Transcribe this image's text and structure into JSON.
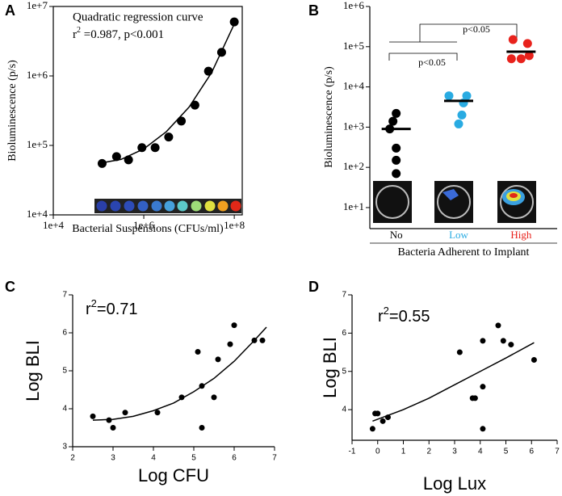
{
  "chart_data": [
    {
      "type": "scatter",
      "panel": "A",
      "xlog": true,
      "ylog": true,
      "annotation": "Quadratic regression curve",
      "stat": [
        "r",
        "2",
        " =0.987, p<0.001"
      ],
      "xlabel": "Bacterial Suspensions (CFUs/ml)",
      "ylabel": "Bioluminescence (p/s)",
      "xlim": [
        10000,
        150000000
      ],
      "ylim": [
        10000,
        10000000
      ],
      "xticks": [
        {
          "value": 10000,
          "label": "1e+4"
        },
        {
          "value": 1000000,
          "label": "1e+6"
        },
        {
          "value": 100000000,
          "label": "1e+8"
        }
      ],
      "yticks": [
        {
          "value": 10000,
          "label": "1e+4"
        },
        {
          "value": 100000,
          "label": "1e+5"
        },
        {
          "value": 1000000,
          "label": "1e+6"
        },
        {
          "value": 10000000,
          "label": "1e+7"
        }
      ],
      "x": [
        120000,
        250000,
        460000,
        910000,
        1780000,
        3550000,
        6760000,
        13500000,
        26900000,
        52500000,
        100000000
      ],
      "values": [
        55000,
        69000,
        62000,
        93000,
        93000,
        132000,
        224000,
        380000,
        1170000,
        2190000,
        6000000
      ],
      "color": "#000000",
      "fit": {
        "x": [
          100000,
          316228,
          1000000,
          3162278,
          10000000,
          31622777,
          100000000
        ],
        "values": [
          55000,
          63000,
          89000,
          158000,
          355000,
          1120000,
          5600000
        ]
      }
    },
    {
      "type": "dot",
      "panel": "B",
      "ylog": true,
      "ylabel": "Bioluminescence (p/s)",
      "xlabel": "Bacteria Adherent to Implant",
      "ylim": [
        3,
        1000000
      ],
      "yticks": [
        {
          "value": 10,
          "label": "1e+1"
        },
        {
          "value": 100,
          "label": "1e+2"
        },
        {
          "value": 1000,
          "label": "1e+3"
        },
        {
          "value": 10000,
          "label": "1e+4"
        },
        {
          "value": 100000,
          "label": "1e+5"
        },
        {
          "value": 1000000,
          "label": "1e+6"
        }
      ],
      "categories": [
        "No",
        "Low",
        "High"
      ],
      "colors": [
        "#000000",
        "#29abe2",
        "#e8221c"
      ],
      "points": [
        [
          2200,
          1400,
          900,
          300,
          150,
          70
        ],
        [
          6000,
          6000,
          4000,
          2000,
          1200
        ],
        [
          150000,
          120000,
          60000,
          50000,
          50000
        ]
      ],
      "means": [
        900,
        4500,
        75000
      ],
      "annotations": [
        "p<0.05",
        "p<0.05"
      ]
    },
    {
      "type": "scatter",
      "panel": "C",
      "stat": [
        "r",
        "2",
        "=0.71"
      ],
      "xlabel": "Log CFU",
      "ylabel": "Log BLI",
      "xlim": [
        2,
        7
      ],
      "ylim": [
        3,
        7
      ],
      "xticks": [
        2,
        3,
        4,
        5,
        6,
        7
      ],
      "yticks": [
        3,
        4,
        5,
        6,
        7
      ],
      "x": [
        2.5,
        2.9,
        3.0,
        3.3,
        4.1,
        4.7,
        5.1,
        5.2,
        5.2,
        5.5,
        5.6,
        5.9,
        6.0,
        6.5,
        6.7
      ],
      "values": [
        3.8,
        3.7,
        3.5,
        3.9,
        3.9,
        4.3,
        5.5,
        3.5,
        4.6,
        4.3,
        5.3,
        5.7,
        6.2,
        5.8,
        5.8
      ],
      "color": "#000000",
      "fit": {
        "x": [
          2.5,
          3,
          3.5,
          4,
          4.5,
          5,
          5.5,
          6,
          6.5,
          6.8
        ],
        "values": [
          3.7,
          3.72,
          3.8,
          3.95,
          4.15,
          4.45,
          4.8,
          5.25,
          5.8,
          6.15
        ]
      }
    },
    {
      "type": "scatter",
      "panel": "D",
      "stat": [
        "r",
        "2",
        "=0.55"
      ],
      "xlabel": "Log Lux",
      "ylabel": "Log BLI",
      "xlim": [
        -1,
        7
      ],
      "ylim": [
        3.2,
        7
      ],
      "xticks": [
        -1,
        0,
        1,
        2,
        3,
        4,
        5,
        6,
        7
      ],
      "yticks": [
        4,
        5,
        6,
        7
      ],
      "x": [
        -0.2,
        -0.1,
        0,
        0.2,
        0.4,
        3.2,
        3.7,
        3.8,
        4.1,
        4.1,
        4.1,
        4.7,
        4.9,
        5.2,
        6.1
      ],
      "values": [
        3.5,
        3.9,
        3.9,
        3.7,
        3.8,
        5.5,
        4.3,
        4.3,
        3.5,
        4.6,
        5.8,
        6.2,
        5.8,
        5.7,
        5.3
      ],
      "color": "#000000",
      "fit": {
        "x": [
          -0.2,
          1,
          2,
          3,
          4,
          5,
          6.1
        ],
        "values": [
          3.7,
          4.0,
          4.3,
          4.65,
          5.0,
          5.35,
          5.75
        ]
      }
    }
  ]
}
